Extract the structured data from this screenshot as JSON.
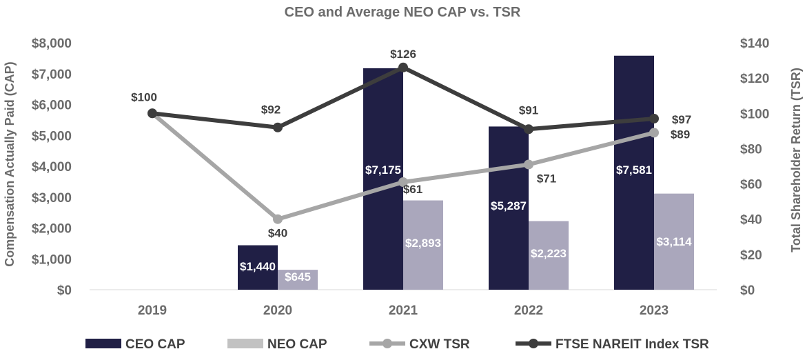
{
  "chart_data": {
    "type": "bar",
    "title": "CEO and Average NEO CAP vs. TSR",
    "ylabel": "Compensation Actually Paid (CAP)",
    "y2label": "Total Shareholder Return (TSR)",
    "categories": [
      "2019",
      "2020",
      "2021",
      "2022",
      "2023"
    ],
    "ylim": [
      0,
      8000
    ],
    "y2lim": [
      0,
      140
    ],
    "y_ticks": [
      {
        "value": 0,
        "label": "$0"
      },
      {
        "value": 1000,
        "label": "$1,000"
      },
      {
        "value": 2000,
        "label": "$2,000"
      },
      {
        "value": 3000,
        "label": "$3,000"
      },
      {
        "value": 4000,
        "label": "$4,000"
      },
      {
        "value": 5000,
        "label": "$5,000"
      },
      {
        "value": 6000,
        "label": "$6,000"
      },
      {
        "value": 7000,
        "label": "$7,000"
      },
      {
        "value": 8000,
        "label": "$8,000"
      }
    ],
    "y2_ticks": [
      {
        "value": 0,
        "label": "$0"
      },
      {
        "value": 20,
        "label": "$20"
      },
      {
        "value": 40,
        "label": "$40"
      },
      {
        "value": 60,
        "label": "$60"
      },
      {
        "value": 80,
        "label": "$80"
      },
      {
        "value": 100,
        "label": "$100"
      },
      {
        "value": 120,
        "label": "$120"
      },
      {
        "value": 140,
        "label": "$140"
      }
    ],
    "bars": [
      {
        "name": "CEO CAP",
        "color": "#201f45",
        "label_color": "#ffffff",
        "values": [
          null,
          1440,
          7175,
          5287,
          7581
        ],
        "labels": [
          null,
          "$1,440",
          "$7,175",
          "$5,287",
          "$7,581"
        ]
      },
      {
        "name": "NEO CAP",
        "color": "#aaa7bc",
        "label_color": "#ffffff",
        "values": [
          null,
          645,
          2893,
          2223,
          3114
        ],
        "labels": [
          null,
          "$645",
          "$2,893",
          "$2,223",
          "$3,114"
        ]
      }
    ],
    "lines": [
      {
        "name": "CXW TSR",
        "color": "#a6a6a6",
        "values": [
          100,
          40,
          61,
          71,
          89
        ],
        "labels": [
          "",
          "$40",
          "$61",
          "$71",
          "$89"
        ]
      },
      {
        "name": "FTSE NAREIT Index TSR",
        "color": "#3d3d3d",
        "values": [
          100,
          92,
          126,
          91,
          97
        ],
        "labels": [
          "$100",
          "$92",
          "$126",
          "$91",
          "$97"
        ]
      }
    ],
    "legend": [
      {
        "name": "CEO CAP",
        "kind": "bar",
        "color": "#201f45"
      },
      {
        "name": "NEO CAP",
        "kind": "bar",
        "color": "#c2c2c2"
      },
      {
        "name": "CXW TSR",
        "kind": "line",
        "color": "#a6a6a6"
      },
      {
        "name": "FTSE NAREIT Index TSR",
        "kind": "line",
        "color": "#3d3d3d"
      }
    ],
    "legend_position": "bottom",
    "grid": false
  }
}
